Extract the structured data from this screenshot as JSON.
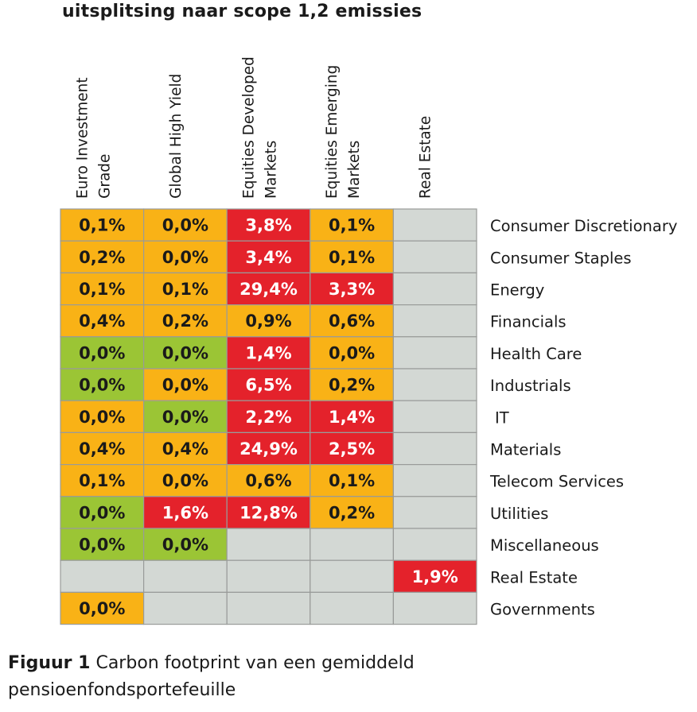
{
  "title": "uitsplitsing naar scope 1,2 emissies",
  "caption": {
    "label": "Figuur 1",
    "text": " Carbon footprint van een gemiddeld pensioenfondsportefeuille"
  },
  "colors": {
    "orange": "#f9b216",
    "red": "#e4222b",
    "green": "#9bc535",
    "gray": "#d3d8d4",
    "grid": "#999b99"
  },
  "chart_data": {
    "type": "heatmap",
    "title": "uitsplitsing naar scope 1,2 emissies",
    "columns": [
      [
        "Euro Investment",
        "Grade"
      ],
      [
        "Global High Yield"
      ],
      [
        "Equities Developed",
        "Markets"
      ],
      [
        "Equities Emerging",
        "Markets"
      ],
      [
        "Real Estate"
      ]
    ],
    "rows": [
      "Consumer Discretionary",
      "Consumer Staples",
      "Energy",
      "Financials",
      "Health Care",
      "Industrials",
      "IT",
      "Materials",
      "Telecom Services",
      "Utilities",
      "Miscellaneous",
      "Real Estate",
      "Governments"
    ],
    "values": [
      [
        "0,1%",
        "0,0%",
        "3,8%",
        "0,1%",
        null
      ],
      [
        "0,2%",
        "0,0%",
        "3,4%",
        "0,1%",
        null
      ],
      [
        "0,1%",
        "0,1%",
        "29,4%",
        "3,3%",
        null
      ],
      [
        "0,4%",
        "0,2%",
        "0,9%",
        "0,6%",
        null
      ],
      [
        "0,0%",
        "0,0%",
        "1,4%",
        "0,0%",
        null
      ],
      [
        "0,0%",
        "0,0%",
        "6,5%",
        "0,2%",
        null
      ],
      [
        "0,0%",
        "0,0%",
        "2,2%",
        "1,4%",
        null
      ],
      [
        "0,4%",
        "0,4%",
        "24,9%",
        "2,5%",
        null
      ],
      [
        "0,1%",
        "0,0%",
        "0,6%",
        "0,1%",
        null
      ],
      [
        "0,0%",
        "1,6%",
        "12,8%",
        "0,2%",
        null
      ],
      [
        "0,0%",
        "0,0%",
        null,
        null,
        null
      ],
      [
        null,
        null,
        null,
        null,
        "1,9%"
      ],
      [
        "0,0%",
        null,
        null,
        null,
        null
      ]
    ],
    "cell_colors": [
      [
        "orange",
        "orange",
        "red",
        "orange",
        "gray"
      ],
      [
        "orange",
        "orange",
        "red",
        "orange",
        "gray"
      ],
      [
        "orange",
        "orange",
        "red",
        "red",
        "gray"
      ],
      [
        "orange",
        "orange",
        "orange",
        "orange",
        "gray"
      ],
      [
        "green",
        "green",
        "red",
        "orange",
        "gray"
      ],
      [
        "green",
        "orange",
        "red",
        "orange",
        "gray"
      ],
      [
        "orange",
        "green",
        "red",
        "red",
        "gray"
      ],
      [
        "orange",
        "orange",
        "red",
        "red",
        "gray"
      ],
      [
        "orange",
        "orange",
        "orange",
        "orange",
        "gray"
      ],
      [
        "green",
        "red",
        "red",
        "orange",
        "gray"
      ],
      [
        "green",
        "green",
        "gray",
        "gray",
        "gray"
      ],
      [
        "gray",
        "gray",
        "gray",
        "gray",
        "red"
      ],
      [
        "orange",
        "gray",
        "gray",
        "gray",
        "gray"
      ]
    ]
  }
}
